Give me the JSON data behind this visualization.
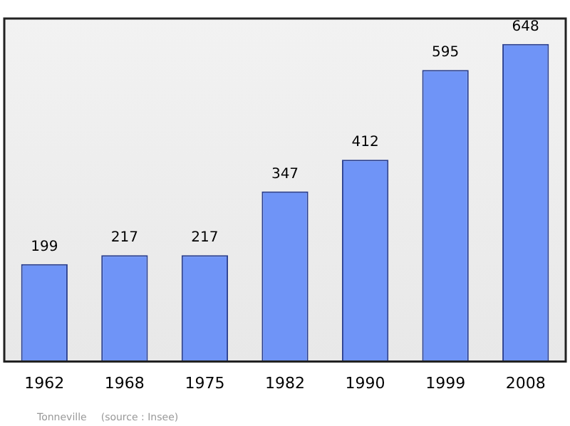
{
  "chart_data": {
    "type": "bar",
    "categories": [
      "1962",
      "1968",
      "1975",
      "1982",
      "1990",
      "1999",
      "2008"
    ],
    "values": [
      199,
      217,
      217,
      347,
      412,
      595,
      648
    ],
    "color": "#6f94f7",
    "data_labels": true,
    "grid": false,
    "legend": false,
    "annotations": [
      "Tonneville",
      "(source : Insee)"
    ]
  }
}
